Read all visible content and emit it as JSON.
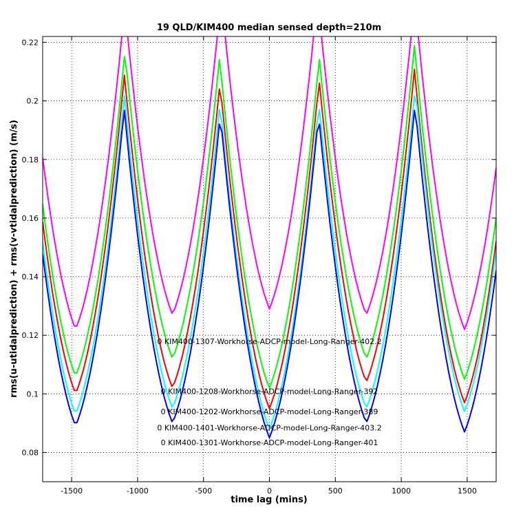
{
  "chart_data": {
    "type": "line",
    "title": "19 QLD/KIM400 median sensed depth=210m",
    "xlabel": "time lag (mins)",
    "ylabel": "rms(u-utidalprediction) + rms(v-vtidalprediction) (m/s)",
    "xlim": [
      -1720,
      1720
    ],
    "ylim": [
      0.07,
      0.222
    ],
    "xticks": [
      -1500,
      -1000,
      -500,
      0,
      500,
      1000,
      1500
    ],
    "xtick_labels": [
      "-1500",
      "-1000",
      "-500",
      "0",
      "500",
      "1000",
      "1500"
    ],
    "yticks": [
      0.08,
      0.1,
      0.12,
      0.14,
      0.16,
      0.18,
      0.2,
      0.22
    ],
    "ytick_labels": [
      "0.08",
      "0.1",
      "0.12",
      "0.14",
      "0.16",
      "0.18",
      "0.2",
      "0.22"
    ],
    "grid": true,
    "min_locations": [
      -1470,
      -735,
      0,
      735,
      1480
    ],
    "series": [
      {
        "name": "KIM400-1307-Workhorse-ADCP-model-Long-Ranger-402.2",
        "color": "#ff00ff",
        "minima": [
          0.122,
          0.127,
          0.129,
          0.127,
          0.122
        ]
      },
      {
        "name": "KIM400-1208-Workhorse-ADCP-model-Long-Ranger-392",
        "color": "#00ff00",
        "minima": [
          0.106,
          0.112,
          0.102,
          0.112,
          0.105
        ]
      },
      {
        "name": "KIM400-1202-Workhorse-ADCP-model-Long-Ranger-389",
        "color": "#ff0000",
        "minima": [
          0.1,
          0.102,
          0.095,
          0.104,
          0.097
        ]
      },
      {
        "name": "KIM400-1401-Workhorse-ADCP-model-Long-Ranger-403.2",
        "color": "#00ffff",
        "minima": [
          0.093,
          0.095,
          0.088,
          0.095,
          0.094
        ]
      },
      {
        "name": "KIM400-1301-Workhorse-ADCP-model-Long-Ranger-401",
        "color": "#0000ff",
        "minima": [
          0.089,
          0.09,
          0.085,
          0.09,
          0.087
        ]
      }
    ],
    "annotations": [
      "0 KIM400-1307-Workhorse-ADCP-model-Long-Ranger-402.2",
      "0 KIM400-1208-Workhorse-ADCP-model-Long-Ranger-392",
      "0 KIM400-1202-Workhorse-ADCP-model-Long-Ranger-389",
      "0 KIM400-1401-Workhorse-ADCP-model-Long-Ranger-403.2",
      "0 KIM400-1301-Workhorse-ADCP-model-Long-Ranger-401"
    ]
  }
}
